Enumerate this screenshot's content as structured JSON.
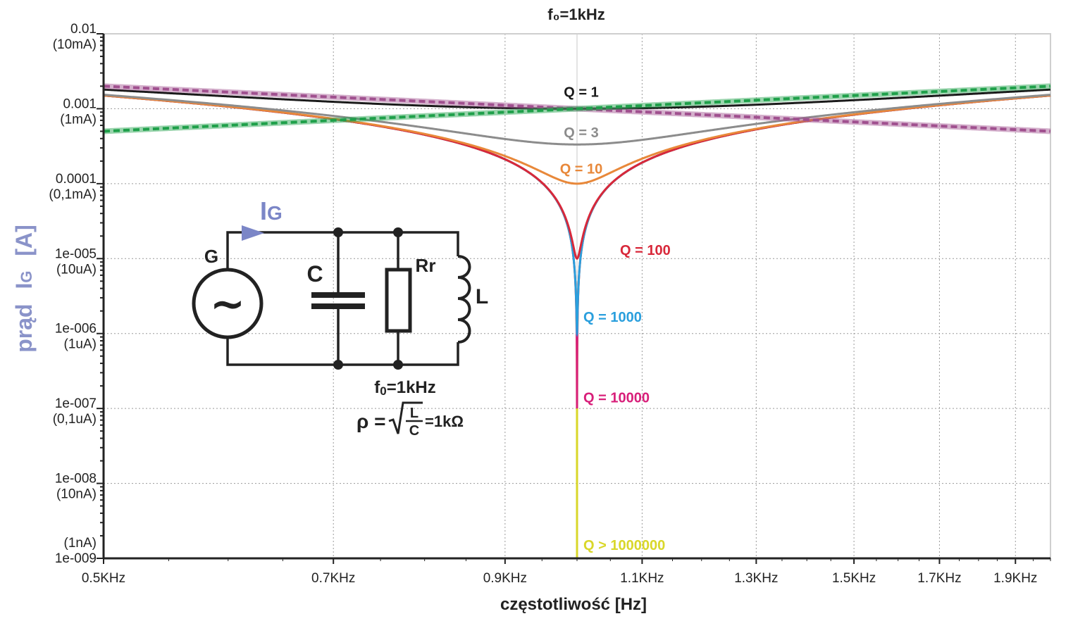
{
  "chart_data": {
    "type": "line",
    "title": "f₀=1kHz",
    "xlabel": "częstotliwość  [Hz]",
    "ylabel_main": "prąd",
    "ylabel_sym": "I",
    "ylabel_sub": "G",
    "ylabel_unit": "[A]",
    "x_scale": "log",
    "y_scale": "log",
    "xlim": [
      500,
      2000
    ],
    "ylim": [
      1e-09,
      0.01
    ],
    "grid": true,
    "x_ticks": [
      {
        "value": 500,
        "label": "0.5KHz"
      },
      {
        "value": 700,
        "label": "0.7KHz"
      },
      {
        "value": 900,
        "label": "0.9KHz"
      },
      {
        "value": 1100,
        "label": "1.1KHz"
      },
      {
        "value": 1300,
        "label": "1.3KHz"
      },
      {
        "value": 1500,
        "label": "1.5KHz"
      },
      {
        "value": 1700,
        "label": "1.7KHz"
      },
      {
        "value": 1900,
        "label": "1.9KHz"
      }
    ],
    "y_ticks": [
      {
        "value": 0.01,
        "label": "0.01",
        "sub": "(10mA)"
      },
      {
        "value": 0.001,
        "label": "0.001",
        "sub": "(1mA)"
      },
      {
        "value": 0.0001,
        "label": "0.0001",
        "sub": "(0,1mA)"
      },
      {
        "value": 1e-05,
        "label": "1e-005",
        "sub": "(10uA)"
      },
      {
        "value": 1e-06,
        "label": "1e-006",
        "sub": "(1uA)"
      },
      {
        "value": 1e-07,
        "label": "1e-007",
        "sub": "(0,1uA)"
      },
      {
        "value": 1e-08,
        "label": "1e-008",
        "sub": "(10nA)"
      },
      {
        "value": 1e-09,
        "label": "1e-009",
        "sub": "(1nA)"
      }
    ],
    "f0": 1000,
    "series": [
      {
        "name": "Q = 1",
        "Q": 1,
        "color": "#1a1a1a",
        "label_at": {
          "x": 1000,
          "y": 0.00145
        }
      },
      {
        "name": "Q = 3",
        "Q": 3,
        "color": "#8c8c8c",
        "label_at": {
          "x": 1000,
          "y": 0.000415
        }
      },
      {
        "name": "Q = 10",
        "Q": 10,
        "color": "#e8883a",
        "label_at": {
          "x": 1000,
          "y": 0.000136
        }
      },
      {
        "name": "Q = 100",
        "Q": 100,
        "color": "#d8283a",
        "label_at": {
          "x": 1065,
          "y": 1.12e-05
        }
      },
      {
        "name": "Q = 1000",
        "Q": 1000,
        "color": "#2a9fdd",
        "label_at": {
          "x": 1000,
          "y": 1.43e-06
        }
      },
      {
        "name": "Q = 10000",
        "Q": 10000,
        "color": "#d81f7a",
        "label_at": {
          "x": 1000,
          "y": 1.2e-07
        }
      },
      {
        "name": "Q > 1000000",
        "Q": 1000000,
        "color": "#d9d72a",
        "label_at": {
          "x": 1000,
          "y": 1.3e-09
        }
      }
    ],
    "asymptotes": [
      {
        "element": "L",
        "color": "#a0508f"
      },
      {
        "element": "C",
        "color": "#1fa04a"
      }
    ]
  },
  "circuit": {
    "current_sym": "I",
    "current_sub": "G",
    "generator": "G",
    "generator_symbol": "~",
    "capacitor": "C",
    "resistor": "Rr",
    "inductor": "L",
    "f0_main": "f",
    "f0_sub": "0",
    "f0_rest": "=1kHz",
    "rho_symbol": "ρ =",
    "rho_num": "L",
    "rho_den": "C",
    "rho_value": "=1kΩ",
    "colors": {
      "arrow": "#7b86c7",
      "wire": "#222222"
    }
  }
}
